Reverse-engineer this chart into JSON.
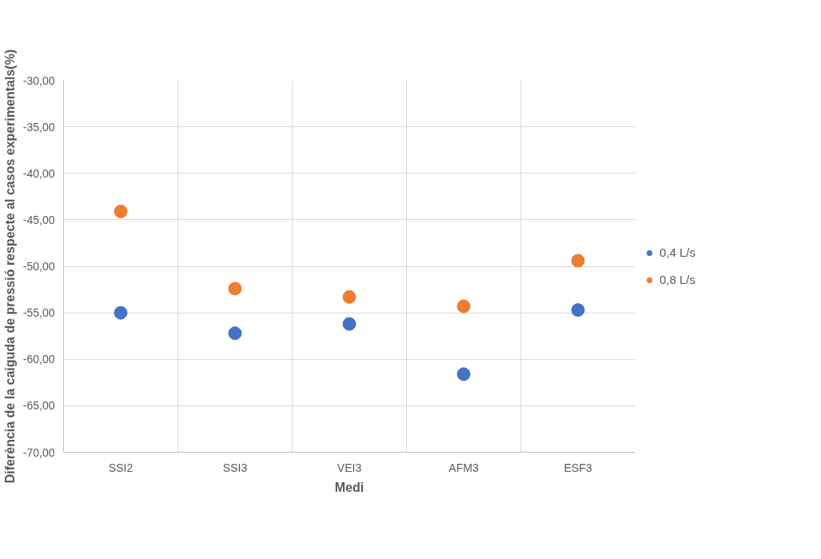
{
  "chart_data": {
    "type": "scatter",
    "xlabel": "Medi",
    "ylabel": "Diferència de la caiguda de pressió respecte al casos experimentals(%)",
    "categories": [
      "SSI2",
      "SSI3",
      "VEI3",
      "AFM3",
      "ESF3"
    ],
    "series": [
      {
        "name": "0,4 L/s",
        "color": "#4472c4",
        "values": [
          -55.0,
          -57.2,
          -56.2,
          -61.6,
          -54.7
        ]
      },
      {
        "name": "0,8 L/s",
        "color": "#ed7d31",
        "values": [
          -44.1,
          -52.4,
          -53.3,
          -54.3,
          -49.4
        ]
      }
    ],
    "ylim": [
      -70,
      -30
    ],
    "yticks": [
      {
        "value": -70,
        "label": "-70,00"
      },
      {
        "value": -65,
        "label": "-65,00"
      },
      {
        "value": -60,
        "label": "-60,00"
      },
      {
        "value": -55,
        "label": "-55,00"
      },
      {
        "value": -50,
        "label": "-50,00"
      },
      {
        "value": -45,
        "label": "-45,00"
      },
      {
        "value": -40,
        "label": "-40,00"
      },
      {
        "value": -35,
        "label": "-35,00"
      },
      {
        "value": -30,
        "label": "-30,00"
      }
    ],
    "grid": true,
    "legend": "right",
    "marker": "circle"
  }
}
